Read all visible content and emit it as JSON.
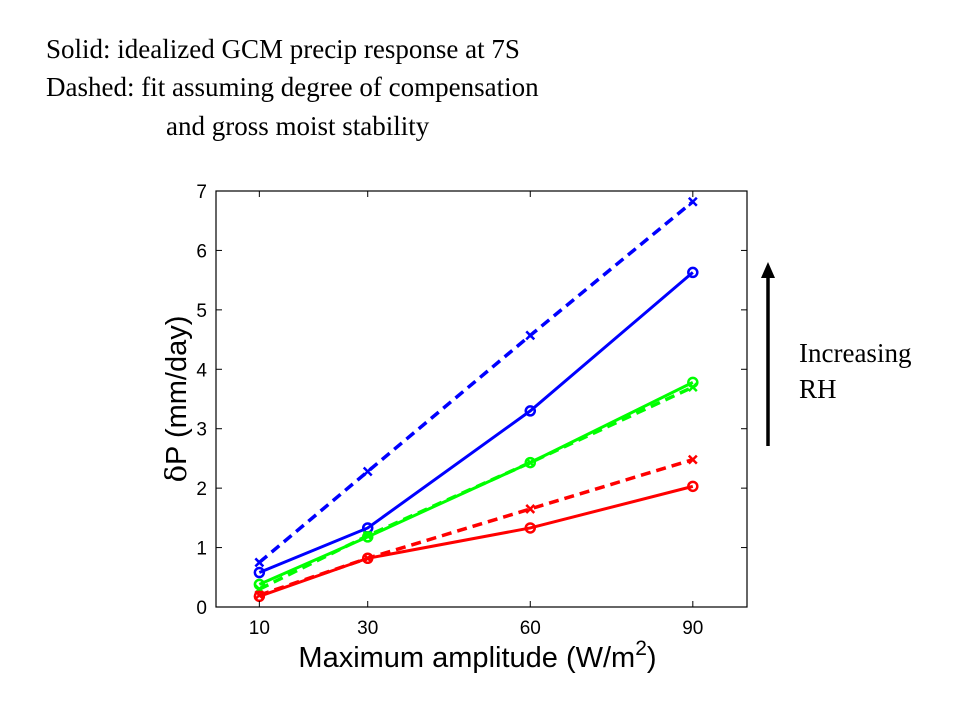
{
  "annotations": {
    "line1": "Solid: idealized GCM precip response at 7S",
    "line2": "Dashed: fit assuming degree of compensation",
    "line3": "and gross moist stability",
    "arrow_label_line1": "Increasing",
    "arrow_label_line2": "RH"
  },
  "chart_data": {
    "type": "line",
    "xlabel": "Maximum amplitude (W/m",
    "xlabel_superscript": "2",
    "xlabel_suffix": ")",
    "ylabel_symbol": "δ",
    "ylabel": "P (mm/day)",
    "x": [
      10,
      30,
      60,
      90
    ],
    "xticks": [
      10,
      30,
      60,
      90
    ],
    "yticks": [
      0,
      1,
      2,
      3,
      4,
      5,
      6,
      7
    ],
    "xlim": [
      2,
      100
    ],
    "ylim": [
      0,
      7
    ],
    "grid": false,
    "series": [
      {
        "color": "#0000ff",
        "style": "solid",
        "marker": "circle",
        "values": [
          0.58,
          1.33,
          3.3,
          5.63
        ]
      },
      {
        "color": "#0000ff",
        "style": "dashed",
        "marker": "x",
        "values": [
          0.75,
          2.28,
          4.57,
          6.82
        ]
      },
      {
        "color": "#00ff00",
        "style": "solid",
        "marker": "circle",
        "values": [
          0.38,
          1.18,
          2.43,
          3.78
        ]
      },
      {
        "color": "#00ff00",
        "style": "dashed",
        "marker": "x",
        "values": [
          0.3,
          1.2,
          2.43,
          3.7
        ]
      },
      {
        "color": "#ff0000",
        "style": "solid",
        "marker": "circle",
        "values": [
          0.18,
          0.82,
          1.33,
          2.03
        ]
      },
      {
        "color": "#ff0000",
        "style": "dashed",
        "marker": "x",
        "values": [
          0.2,
          0.82,
          1.65,
          2.48
        ]
      }
    ]
  }
}
